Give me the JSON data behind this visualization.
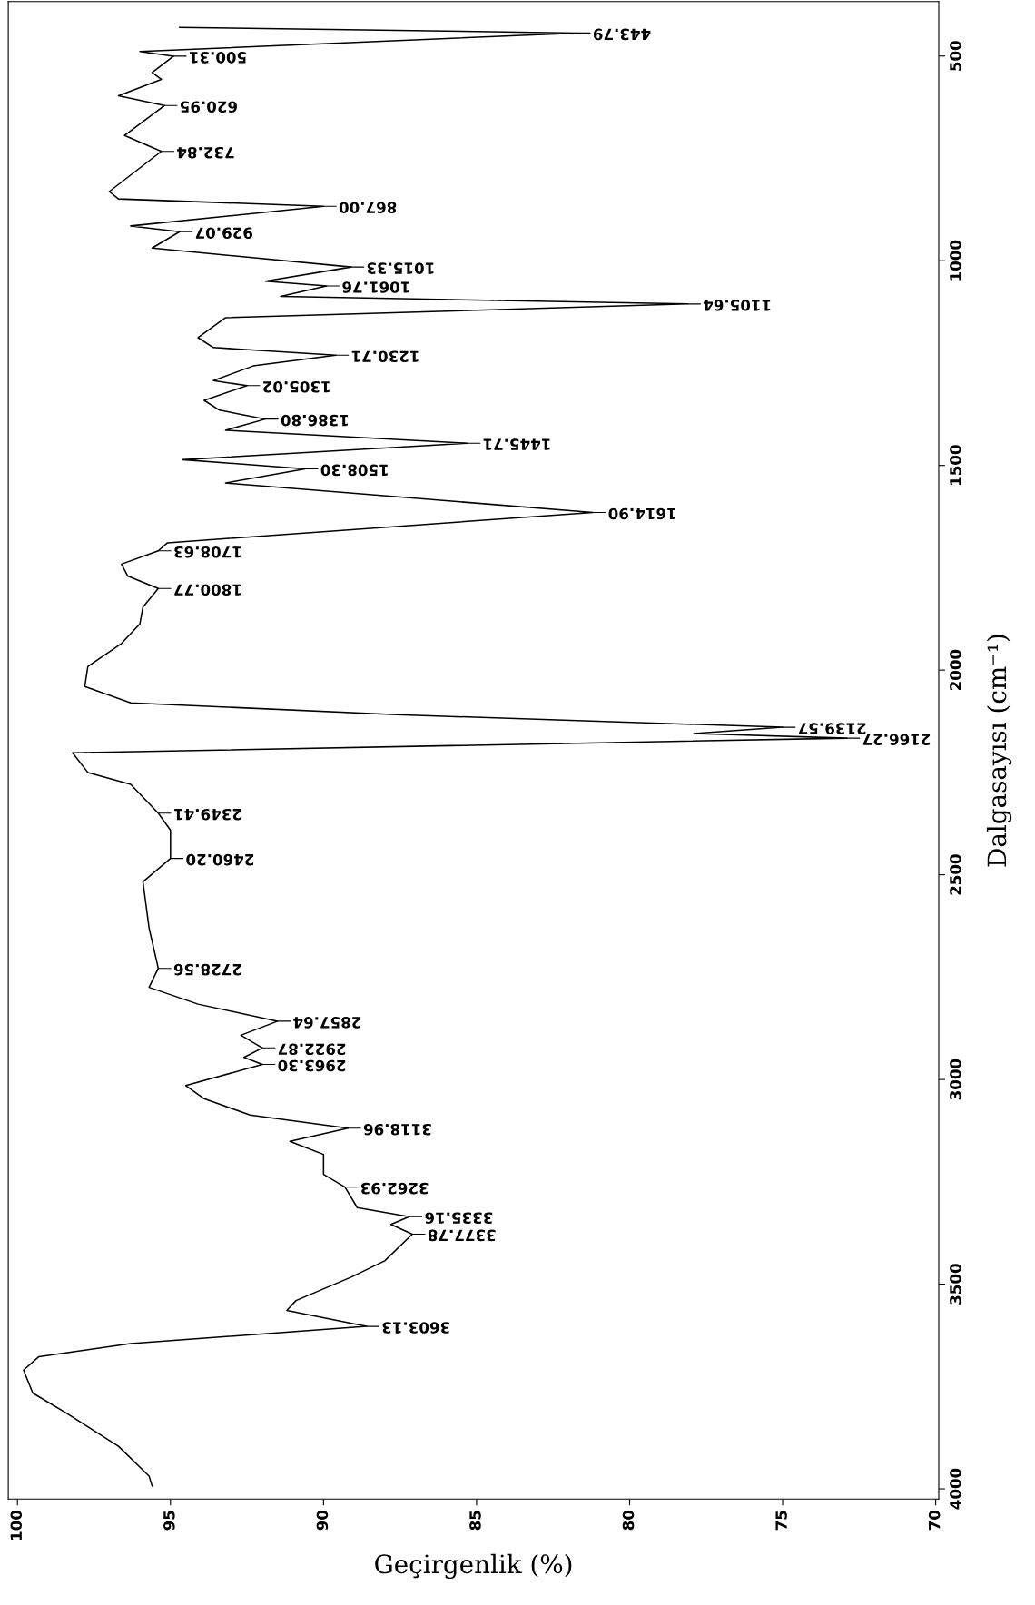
{
  "chart_data": {
    "type": "line",
    "xlabel": "Geçirgenlik (%)",
    "ylabel": "Dalgasayısı (cm⁻¹)",
    "xlim": [
      100.3,
      69.9
    ],
    "xticks": [
      100,
      95,
      90,
      85,
      80,
      75,
      70
    ],
    "ylim": [
      4025,
      367
    ],
    "yticks": [
      500,
      1000,
      1500,
      2000,
      2500,
      3000,
      3500,
      4000
    ],
    "grid": false,
    "legend": false,
    "marker": "none",
    "line_style": "solid",
    "series": [
      {
        "color": "#000000",
        "x": [
          94.7,
          81.7,
          96.0,
          94.9,
          95.6,
          95.3,
          96.7,
          95.2,
          96.5,
          95.3,
          97.0,
          96.7,
          90.0,
          96.3,
          94.7,
          95.6,
          89.1,
          91.9,
          89.9,
          91.4,
          78.1,
          93.2,
          94.1,
          93.6,
          89.6,
          92.3,
          93.6,
          92.5,
          93.9,
          93.4,
          91.9,
          93.2,
          85.3,
          94.6,
          90.6,
          93.2,
          81.2,
          95.1,
          95.4,
          96.6,
          96.4,
          95.4,
          95.9,
          96.0,
          96.6,
          97.7,
          97.8,
          96.3,
          87.6,
          75.0,
          77.9,
          72.9,
          98.2,
          97.7,
          96.3,
          95.4,
          95.0,
          95.0,
          95.9,
          95.7,
          95.4,
          95.7,
          94.1,
          91.5,
          92.7,
          92.0,
          92.6,
          92.0,
          94.5,
          93.9,
          92.4,
          89.2,
          91.1,
          90.0,
          90.0,
          89.3,
          88.9,
          87.2,
          87.8,
          87.1,
          88.0,
          89.1,
          90.9,
          91.2,
          88.6,
          96.3,
          99.3,
          99.8,
          99.5,
          98.4,
          96.7,
          95.7,
          95.6
        ],
        "values": [
          430,
          443.79,
          489,
          500.31,
          540,
          557,
          597,
          620.95,
          694,
          732.84,
          831,
          849,
          867.0,
          915,
          929.07,
          969,
          1015.33,
          1050,
          1061.76,
          1087,
          1105.64,
          1139,
          1188,
          1212,
          1230.71,
          1257,
          1293,
          1305.02,
          1341,
          1365,
          1386.8,
          1414,
          1445.71,
          1486,
          1508.3,
          1543,
          1614.9,
          1689,
          1708.63,
          1741,
          1770,
          1800.77,
          1846,
          1887,
          1935,
          1991,
          2040,
          2080,
          2109,
          2139.57,
          2155,
          2166.27,
          2202,
          2250,
          2279,
          2349.41,
          2391,
          2460.2,
          2517,
          2630,
          2728.56,
          2775,
          2816,
          2857.64,
          2892,
          2922.87,
          2946,
          2963.3,
          3015,
          3047,
          3087,
          3118.96,
          3151,
          3183,
          3232,
          3262.93,
          3313,
          3335.16,
          3354,
          3377.78,
          3443,
          3483,
          3540,
          3564,
          3603.13,
          3645,
          3677,
          3710,
          3766,
          3815,
          3896,
          3969,
          3993
        ]
      }
    ],
    "annotations": [
      {
        "text": "443.79",
        "x": 81.7,
        "y": 443.79
      },
      {
        "text": "500.31",
        "x": 94.9,
        "y": 500.31
      },
      {
        "text": "620.95",
        "x": 95.2,
        "y": 620.95
      },
      {
        "text": "732.84",
        "x": 95.3,
        "y": 732.84
      },
      {
        "text": "867.00",
        "x": 90.0,
        "y": 867.0
      },
      {
        "text": "929.07",
        "x": 94.7,
        "y": 929.07
      },
      {
        "text": "1015.33",
        "x": 89.1,
        "y": 1015.33
      },
      {
        "text": "1061.76",
        "x": 89.9,
        "y": 1061.76
      },
      {
        "text": "1105.64",
        "x": 78.1,
        "y": 1105.64
      },
      {
        "text": "1230.71",
        "x": 89.6,
        "y": 1230.71
      },
      {
        "text": "1305.02",
        "x": 92.5,
        "y": 1305.02
      },
      {
        "text": "1386.80",
        "x": 91.9,
        "y": 1386.8
      },
      {
        "text": "1445.71",
        "x": 85.3,
        "y": 1445.71
      },
      {
        "text": "1508.30",
        "x": 90.6,
        "y": 1508.3
      },
      {
        "text": "1614.90",
        "x": 81.2,
        "y": 1614.9
      },
      {
        "text": "1708.63",
        "x": 95.4,
        "y": 1708.63
      },
      {
        "text": "1800.77",
        "x": 95.4,
        "y": 1800.77
      },
      {
        "text": "2139.57",
        "x": 75.0,
        "y": 2139.57
      },
      {
        "text": "2166.27",
        "x": 72.9,
        "y": 2166.27
      },
      {
        "text": "2349.41",
        "x": 95.4,
        "y": 2349.41
      },
      {
        "text": "2460.20",
        "x": 95.0,
        "y": 2460.2
      },
      {
        "text": "2728.56",
        "x": 95.4,
        "y": 2728.56
      },
      {
        "text": "2857.64",
        "x": 91.5,
        "y": 2857.64
      },
      {
        "text": "2922.87",
        "x": 92.0,
        "y": 2922.87
      },
      {
        "text": "2963.30",
        "x": 92.0,
        "y": 2963.3
      },
      {
        "text": "3118.96",
        "x": 89.2,
        "y": 3118.96
      },
      {
        "text": "3262.93",
        "x": 89.3,
        "y": 3262.93
      },
      {
        "text": "3335.16",
        "x": 87.2,
        "y": 3335.16
      },
      {
        "text": "3377.78",
        "x": 87.1,
        "y": 3377.78
      },
      {
        "text": "3603.13",
        "x": 88.6,
        "y": 3603.13
      }
    ]
  }
}
